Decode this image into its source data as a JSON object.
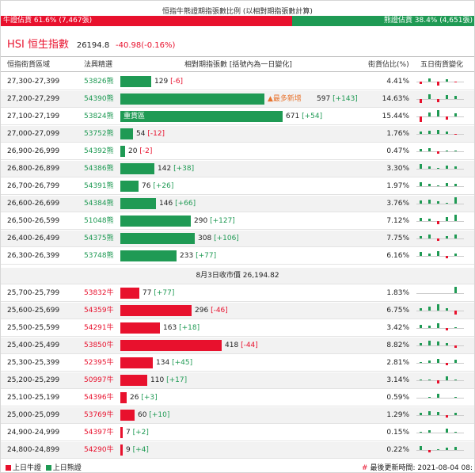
{
  "header": {
    "title": "恒指牛熊證期指張數比例 (以相對期指張數計算)",
    "bull_label": "牛證佔貨 61.6% (7,467張)",
    "bull_fraction": 0.616,
    "bear_label": "熊證佔貨 38.4% (4,651張)"
  },
  "index": {
    "name": "HSI 恒生指數",
    "price": "26194.8",
    "change": "-40.98(-0.16%)"
  },
  "columns": {
    "range": "恒指街貨區域",
    "top_warrant": "法興精選",
    "relative": "相對期指張數 [括號內為一日變化]",
    "share": "街貨佔比(%)",
    "five_day": "五日街貨變化"
  },
  "bear_rows": [
    {
      "range": "27,300-27,399",
      "code": "53826熊",
      "count": "129",
      "delta": "[-6]",
      "share": "4.41%",
      "contracts": 129,
      "spark": [
        -2,
        3,
        -4,
        2,
        -1
      ]
    },
    {
      "range": "27,200-27,299",
      "code": "54390熊",
      "count": "597",
      "delta": "[+143]",
      "share": "14.63%",
      "contracts": 597,
      "tag": "▲最多新增",
      "spark": [
        -4,
        5,
        -3,
        4,
        3
      ]
    },
    {
      "range": "27,100-27,199",
      "code": "53824熊",
      "count": "671",
      "delta": "[+54]",
      "share": "15.44%",
      "contracts": 671,
      "tag": "重貨區",
      "spark": [
        -5,
        4,
        6,
        -3,
        3
      ]
    },
    {
      "range": "27,000-27,099",
      "code": "53752熊",
      "count": "54",
      "delta": "[-12]",
      "share": "1.76%",
      "contracts": 54,
      "spark": [
        2,
        3,
        4,
        2,
        -1
      ]
    },
    {
      "range": "26,900-26,999",
      "code": "54392熊",
      "count": "20",
      "delta": "[-2]",
      "share": "0.47%",
      "contracts": 20,
      "spark": [
        2,
        3,
        -2,
        1,
        1
      ]
    },
    {
      "range": "26,800-26,899",
      "code": "54386熊",
      "count": "142",
      "delta": "[+38]",
      "share": "3.30%",
      "contracts": 142,
      "spark": [
        5,
        2,
        1,
        3,
        2
      ]
    },
    {
      "range": "26,700-26,799",
      "code": "54391熊",
      "count": "76",
      "delta": "[+26]",
      "share": "1.97%",
      "contracts": 76,
      "spark": [
        4,
        2,
        1,
        3,
        2
      ]
    },
    {
      "range": "26,600-26,699",
      "code": "54384熊",
      "count": "146",
      "delta": "[+66]",
      "share": "3.76%",
      "contracts": 146,
      "spark": [
        3,
        4,
        2,
        1,
        6
      ]
    },
    {
      "range": "26,500-26,599",
      "code": "51048熊",
      "count": "290",
      "delta": "[+127]",
      "share": "7.12%",
      "contracts": 290,
      "spark": [
        3,
        2,
        -3,
        4,
        6
      ]
    },
    {
      "range": "26,400-26,499",
      "code": "54375熊",
      "count": "308",
      "delta": "[+106]",
      "share": "7.75%",
      "contracts": 308,
      "spark": [
        2,
        4,
        -2,
        2,
        4
      ]
    },
    {
      "range": "26,300-26,399",
      "code": "53748熊",
      "count": "233",
      "delta": "[+77]",
      "share": "6.16%",
      "contracts": 233,
      "spark": [
        4,
        2,
        5,
        -2,
        2
      ]
    }
  ],
  "close_line": "8月3日收市價 26,194.82",
  "bull_rows": [
    {
      "range": "25,700-25,799",
      "code": "53832牛",
      "count": "77",
      "delta": "[+77]",
      "share": "1.83%",
      "contracts": 77,
      "spark": [
        0,
        0,
        0,
        0,
        6
      ]
    },
    {
      "range": "25,600-25,699",
      "code": "54359牛",
      "count": "296",
      "delta": "[-46]",
      "share": "6.75%",
      "contracts": 296,
      "spark": [
        2,
        4,
        6,
        2,
        -4
      ]
    },
    {
      "range": "25,500-25,599",
      "code": "54291牛",
      "count": "163",
      "delta": "[+18]",
      "share": "3.42%",
      "contracts": 163,
      "spark": [
        3,
        2,
        5,
        -2,
        1
      ]
    },
    {
      "range": "25,400-25,499",
      "code": "53850牛",
      "count": "418",
      "delta": "[-44]",
      "share": "8.82%",
      "contracts": 418,
      "spark": [
        2,
        5,
        4,
        2,
        -2
      ]
    },
    {
      "range": "25,300-25,399",
      "code": "52395牛",
      "count": "134",
      "delta": "[+45]",
      "share": "2.81%",
      "contracts": 134,
      "spark": [
        1,
        2,
        4,
        -2,
        3
      ]
    },
    {
      "range": "25,200-25,299",
      "code": "50997牛",
      "count": "110",
      "delta": "[+17]",
      "share": "3.14%",
      "contracts": 110,
      "spark": [
        1,
        1,
        -3,
        4,
        1
      ]
    },
    {
      "range": "25,100-25,199",
      "code": "54396牛",
      "count": "26",
      "delta": "[+3]",
      "share": "0.59%",
      "contracts": 26,
      "spark": [
        0,
        1,
        4,
        0,
        1
      ]
    },
    {
      "range": "25,000-25,099",
      "code": "53769牛",
      "count": "60",
      "delta": "[+10]",
      "share": "1.29%",
      "contracts": 60,
      "spark": [
        2,
        4,
        3,
        -2,
        2
      ]
    },
    {
      "range": "24,900-24,999",
      "code": "54397牛",
      "count": "7",
      "delta": "[+2]",
      "share": "0.15%",
      "contracts": 7,
      "spark": [
        1,
        2,
        0,
        4,
        1
      ]
    },
    {
      "range": "24,800-24,899",
      "code": "54290牛",
      "count": "9",
      "delta": "[+4]",
      "share": "0.22%",
      "contracts": 9,
      "spark": [
        4,
        -2,
        1,
        2,
        3
      ]
    }
  ],
  "legend": {
    "bull": "上日牛證",
    "bear": "上日熊證"
  },
  "footer": {
    "hash": "#",
    "updated": "最後更新時間: 2021-08-04 08:"
  },
  "colors": {
    "bull": "#e8112d",
    "bear": "#1f9a54",
    "tag_new": "#e8732d"
  }
}
